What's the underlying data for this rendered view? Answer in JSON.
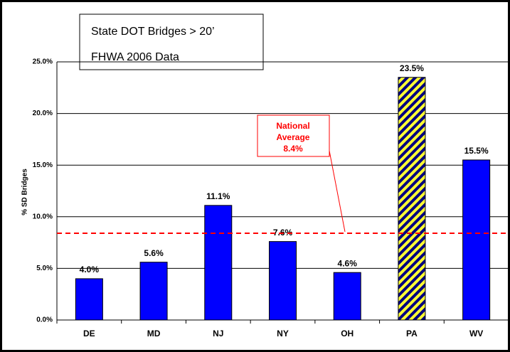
{
  "chart_data": {
    "type": "bar",
    "title": "State DOT Bridges > 20’",
    "subtitle": "FHWA 2006 Data",
    "y_label": "% SD Bridges",
    "categories": [
      "DE",
      "MD",
      "NJ",
      "NY",
      "OH",
      "PA",
      "WV"
    ],
    "values": [
      4.0,
      5.6,
      11.1,
      7.6,
      4.6,
      23.5,
      15.5
    ],
    "value_labels": [
      "4.0%",
      "5.6%",
      "11.1%",
      "7.6%",
      "4.6%",
      "23.5%",
      "15.5%"
    ],
    "color": "#0000ff",
    "hatched": [
      false,
      false,
      false,
      false,
      false,
      true,
      false
    ],
    "hatch_colors": [
      "#ffff33",
      "#000080"
    ],
    "ylim": [
      0,
      25
    ],
    "yticks": [
      {
        "value": 0,
        "label": "0.0%"
      },
      {
        "value": 5,
        "label": "5.0%"
      },
      {
        "value": 10,
        "label": "10.0%"
      },
      {
        "value": 15,
        "label": "15.0%"
      },
      {
        "value": 20,
        "label": "20.0%"
      },
      {
        "value": 25,
        "label": "25.0%"
      }
    ],
    "grid": true,
    "reference": {
      "value": 8.4,
      "label": "National Average",
      "value_label": "8.4%",
      "color": "#ff0000"
    }
  }
}
